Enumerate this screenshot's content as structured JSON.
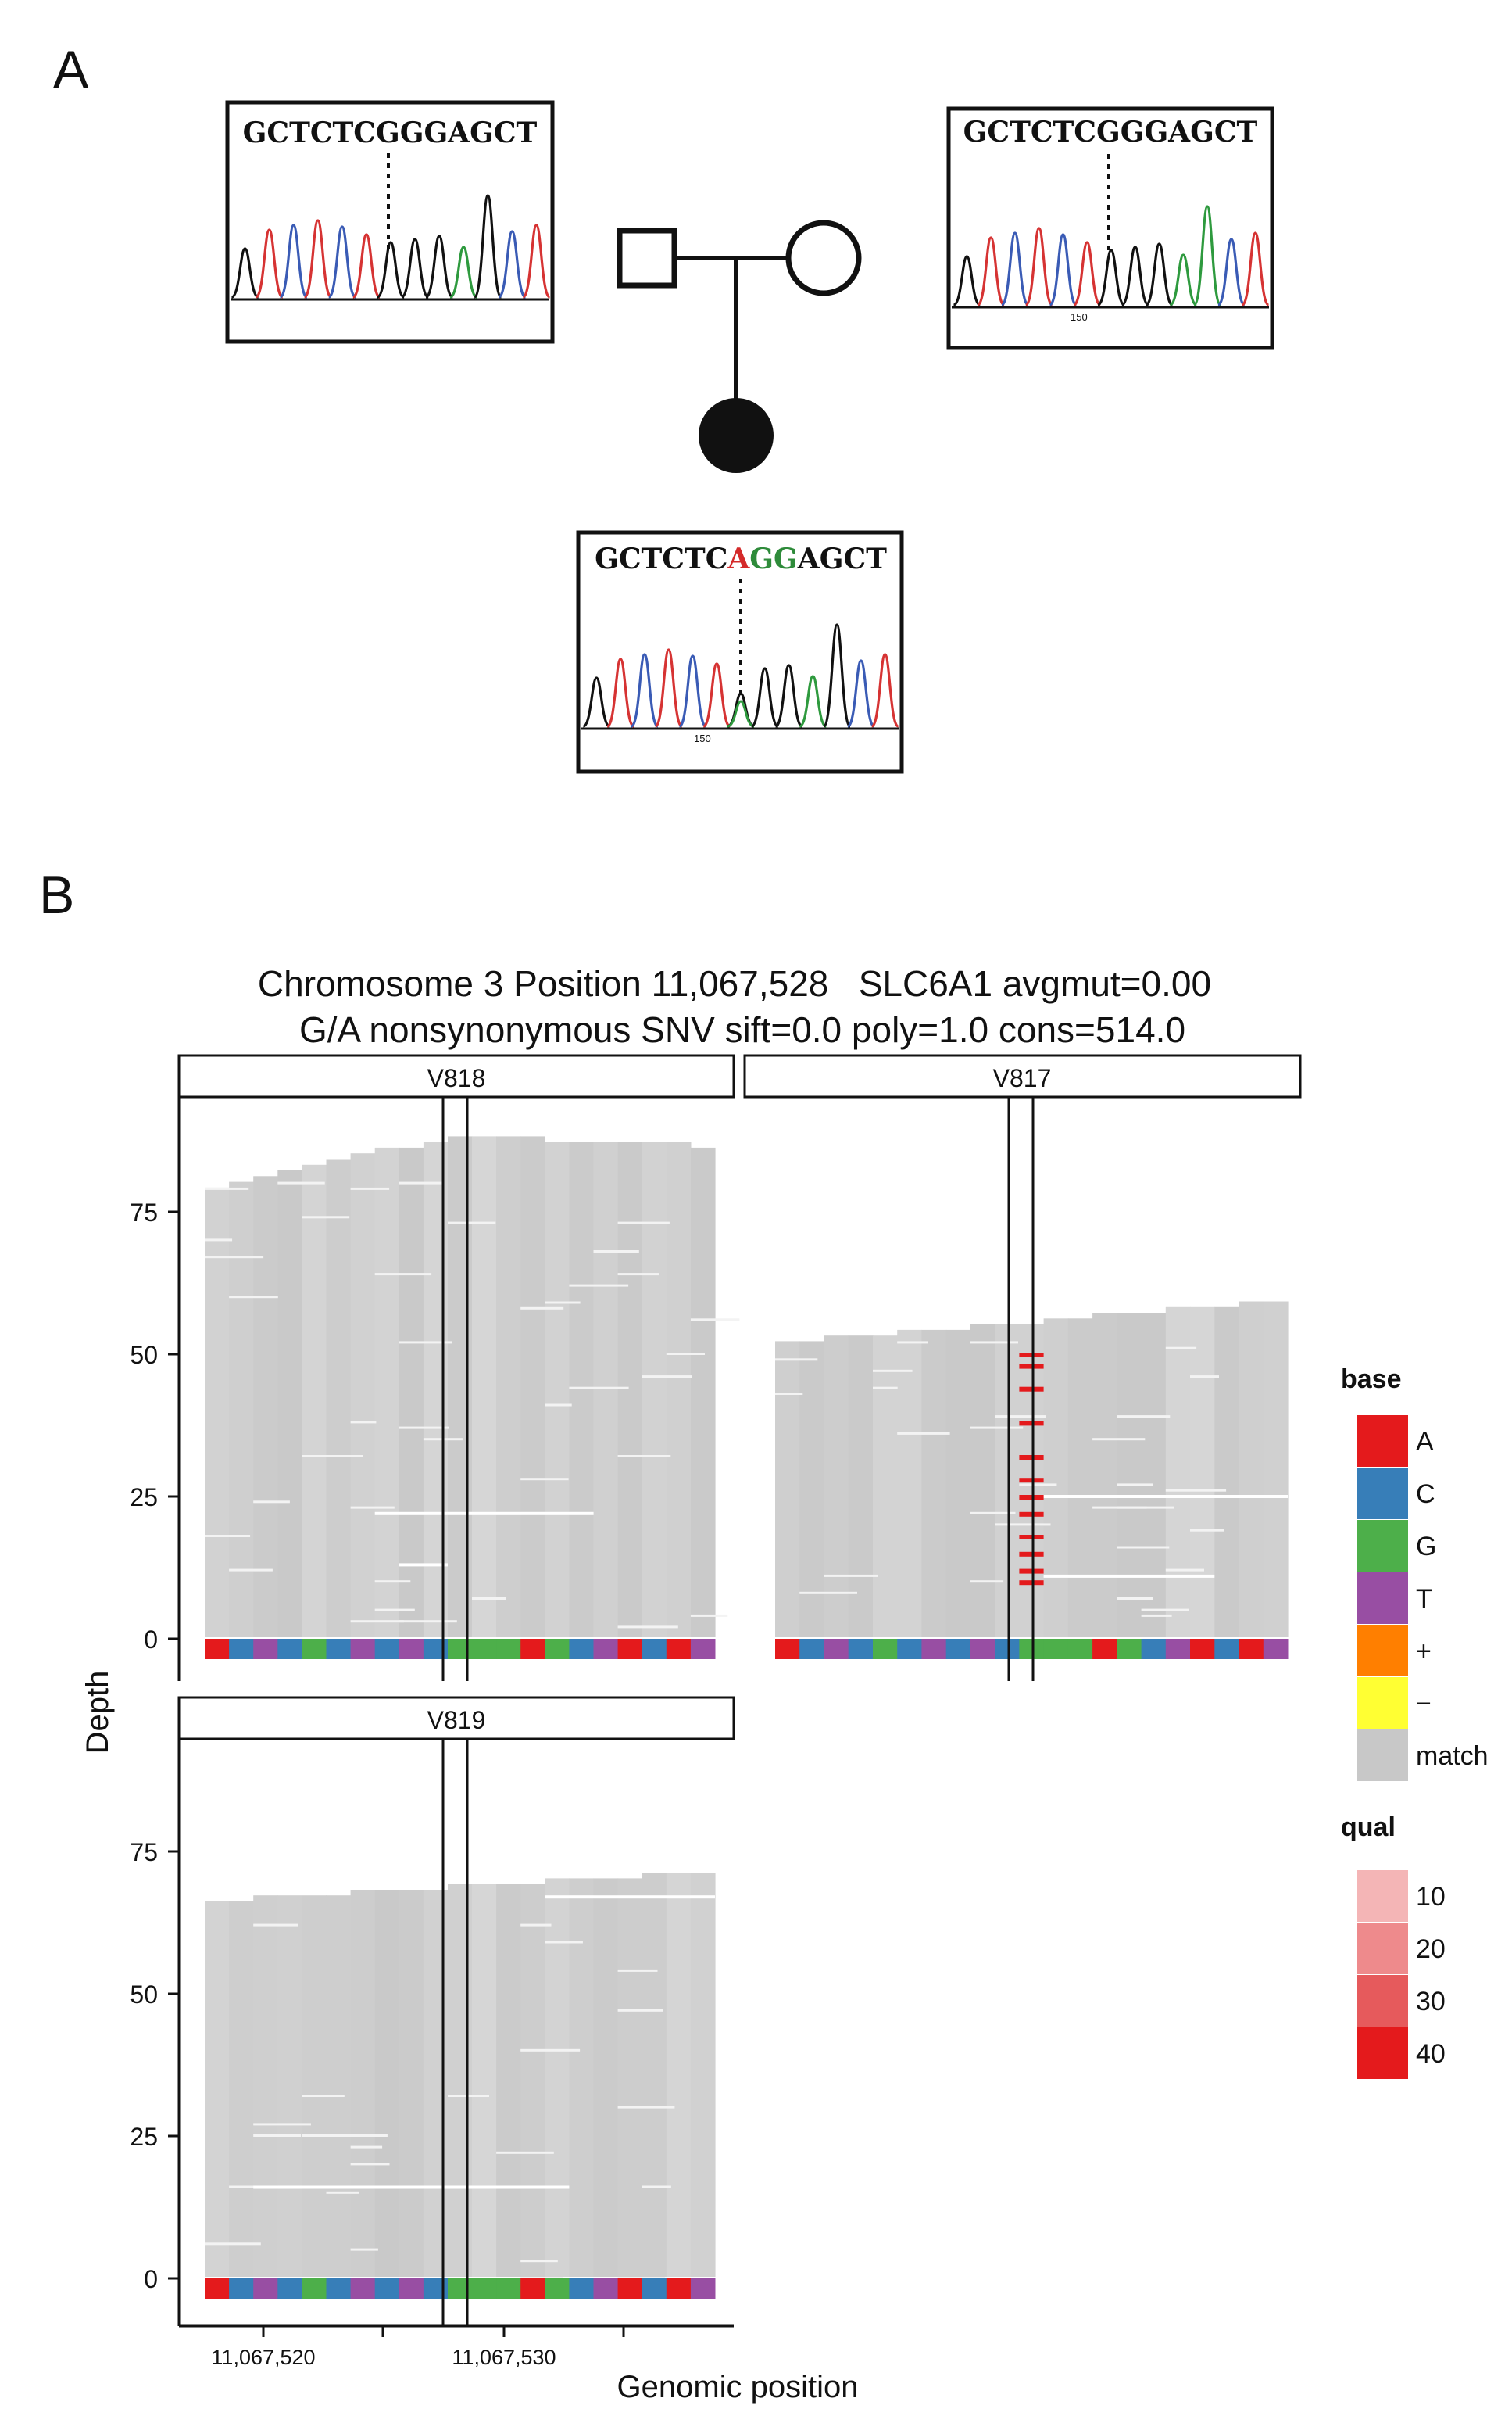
{
  "panel_a": {
    "label": "A",
    "father_sequence": "GCTCTCGGGAGCT",
    "mother_sequence": "GCTCTCGGGAGCT",
    "mother_trace_tick": "150",
    "child_sequence_parts": [
      {
        "text": "GCTCTC",
        "color": "#111111"
      },
      {
        "text": "A",
        "color": "#d42a2a"
      },
      {
        "text": "GG",
        "color": "#2e8b3a"
      },
      {
        "text": "AGCT",
        "color": "#111111"
      }
    ],
    "child_trace_tick": "150",
    "trace_colors": {
      "A": "#2e9a3e",
      "C": "#3a5bb5",
      "G": "#111111",
      "T": "#d63333"
    }
  },
  "panel_b": {
    "label": "B",
    "title_line1": "Chromosome 3 Position 11,067,528   SLC6A1 avgmut=0.00",
    "title_line2": "G/A nonsynonymous SNV sift=0.0 poly=1.0 cons=514.0",
    "facets": [
      {
        "name": "V818",
        "max_depth": 90
      },
      {
        "name": "V817",
        "max_depth": 59
      },
      {
        "name": "V819",
        "max_depth": 71
      }
    ],
    "y_axis_label": "Depth",
    "y_ticks": [
      "0",
      "25",
      "50",
      "75"
    ],
    "x_axis_label": "Genomic position",
    "x_ticks": [
      "11,067,520",
      "11,067,530"
    ],
    "reference_bases": [
      "A",
      "C",
      "T",
      "C",
      "G",
      "C",
      "T",
      "C",
      "T",
      "C",
      "G",
      "G",
      "G",
      "A",
      "G",
      "C",
      "T",
      "A",
      "C",
      "A",
      "T"
    ],
    "legend_base_title": "base",
    "legend_base": [
      {
        "label": "A",
        "color": "#e41a1c"
      },
      {
        "label": "C",
        "color": "#377eb8"
      },
      {
        "label": "G",
        "color": "#4daf4a"
      },
      {
        "label": "T",
        "color": "#984ea3"
      },
      {
        "label": "+",
        "color": "#ff7f00"
      },
      {
        "label": "−",
        "color": "#ffff33"
      },
      {
        "label": "match",
        "color": "#c8c8c8"
      }
    ],
    "legend_qual_title": "qual",
    "legend_qual": [
      {
        "label": "10",
        "color": "#f4b5b6"
      },
      {
        "label": "20",
        "color": "#ee8a8c"
      },
      {
        "label": "30",
        "color": "#e65a5c"
      },
      {
        "label": "40",
        "color": "#e41a1c"
      }
    ]
  },
  "chart_data": {
    "type": "heatmap",
    "title": "Chromosome 3 Position 11,067,528   SLC6A1 avgmut=0.00 / G/A nonsynonymous SNV sift=0.0 poly=1.0 cons=514.0",
    "xlabel": "Genomic position",
    "ylabel": "Depth",
    "ylim": [
      0,
      90
    ],
    "xlim": [
      11067518,
      11067538
    ],
    "x_ticks": [
      11067520,
      11067530
    ],
    "highlight_position": 11067528,
    "series": [
      {
        "name": "V818",
        "depth_at_variant": 90,
        "alt_base_at_variant": "none"
      },
      {
        "name": "V817",
        "depth_at_variant": 56,
        "alt_base_at_variant": "A"
      },
      {
        "name": "V819",
        "depth_at_variant": 71,
        "alt_base_at_variant": "none"
      }
    ]
  }
}
